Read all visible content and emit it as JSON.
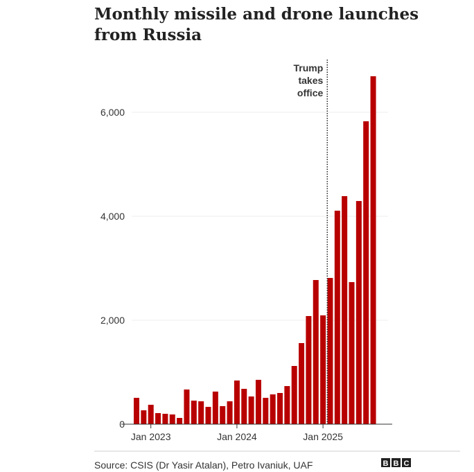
{
  "chart_data": {
    "type": "bar",
    "title": [
      "Monthly missile and drone launches",
      "from Russia"
    ],
    "categories": [
      null,
      null,
      "Jan 2023",
      null,
      null,
      null,
      null,
      null,
      null,
      null,
      null,
      null,
      null,
      null,
      "Jan 2024",
      null,
      null,
      null,
      null,
      null,
      null,
      null,
      null,
      null,
      null,
      null,
      "Jan 2025",
      null,
      null,
      null,
      null,
      null,
      null,
      null
    ],
    "values": [
      507,
      267,
      373,
      213,
      200,
      187,
      120,
      667,
      453,
      440,
      333,
      627,
      347,
      440,
      840,
      680,
      533,
      853,
      507,
      573,
      600,
      733,
      1120,
      1560,
      2080,
      2773,
      2093,
      2813,
      4107,
      4387,
      2733,
      4293,
      5827,
      6693
    ],
    "color": "#b80000",
    "ylim": [
      0,
      6900
    ],
    "yticks": [
      0,
      {
        "value": 2000,
        "label": "2,000"
      },
      {
        "value": 4000,
        "label": "4,000"
      },
      {
        "value": 6000,
        "label": "6,000"
      }
    ],
    "grid": true,
    "annotation": [
      "Trump",
      "takes",
      "office"
    ],
    "source": "Source: CSIS (Dr Yasir Atalan), Petro Ivaniuk, UAF",
    "logo": [
      "B",
      "B",
      "C"
    ]
  }
}
